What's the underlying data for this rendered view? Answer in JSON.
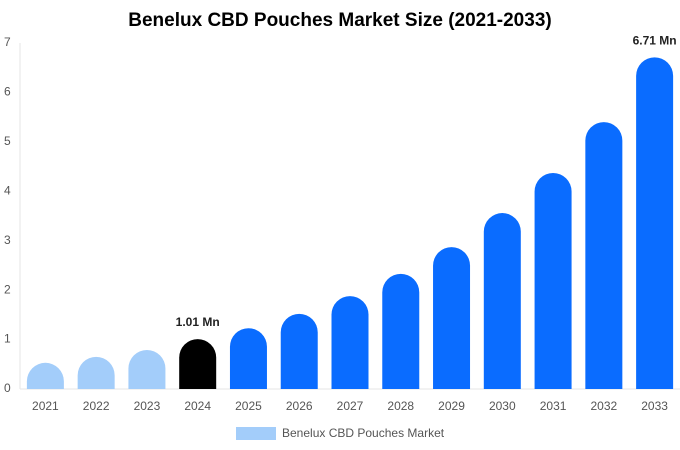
{
  "chart_data": {
    "type": "bar",
    "title": "Benelux CBD Pouches Market Size (2021-2033)",
    "categories": [
      "2021",
      "2022",
      "2023",
      "2024",
      "2025",
      "2026",
      "2027",
      "2028",
      "2029",
      "2030",
      "2031",
      "2032",
      "2033"
    ],
    "series": [
      {
        "name": "Benelux CBD Pouches Market",
        "color": "#a3cdfa",
        "values": [
          0.53,
          0.65,
          0.79,
          1.01,
          1.23,
          1.52,
          1.88,
          2.33,
          2.87,
          3.56,
          4.37,
          5.4,
          6.71
        ],
        "value_labels": [
          null,
          null,
          null,
          "1.01 Mn",
          null,
          null,
          null,
          null,
          null,
          null,
          null,
          null,
          "6.71 Mn"
        ],
        "colors": [
          "#a3cdfa",
          "#a3cdfa",
          "#a3cdfa",
          "#000000",
          "#0a6cff",
          "#0a6cff",
          "#0a6cff",
          "#0a6cff",
          "#0a6cff",
          "#0a6cff",
          "#0a6cff",
          "#0a6cff",
          "#0a6cff"
        ]
      }
    ],
    "ylim": [
      0,
      7
    ],
    "yticks": [
      0,
      1,
      2,
      3,
      4,
      5,
      6,
      7
    ],
    "grid": false,
    "legend": "bottom"
  }
}
